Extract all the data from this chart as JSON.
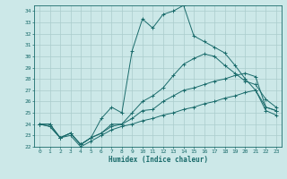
{
  "xlabel": "Humidex (Indice chaleur)",
  "background_color": "#cce8e8",
  "grid_color": "#aacccc",
  "line_color": "#1a6b6b",
  "xlim": [
    -0.5,
    23.5
  ],
  "ylim": [
    22,
    34.5
  ],
  "yticks": [
    22,
    23,
    24,
    25,
    26,
    27,
    28,
    29,
    30,
    31,
    32,
    33,
    34
  ],
  "xticks": [
    0,
    1,
    2,
    3,
    4,
    5,
    6,
    7,
    8,
    9,
    10,
    11,
    12,
    13,
    14,
    15,
    16,
    17,
    18,
    19,
    20,
    21,
    22,
    23
  ],
  "series": [
    [
      24.0,
      23.8,
      22.8,
      23.2,
      22.2,
      22.8,
      24.5,
      25.5,
      25.0,
      30.5,
      33.3,
      32.5,
      33.7,
      34.0,
      34.5,
      31.8,
      31.3,
      30.8,
      30.3,
      29.2,
      28.0,
      27.0,
      25.5,
      25.2
    ],
    [
      24.0,
      24.0,
      22.8,
      23.2,
      22.2,
      22.8,
      23.2,
      24.0,
      24.0,
      25.0,
      26.0,
      26.5,
      27.2,
      28.3,
      29.3,
      29.8,
      30.2,
      30.0,
      29.2,
      28.5,
      27.8,
      27.5,
      26.2,
      25.5
    ],
    [
      24.0,
      24.0,
      22.8,
      23.2,
      22.2,
      22.8,
      23.2,
      23.8,
      24.0,
      24.5,
      25.2,
      25.3,
      26.0,
      26.5,
      27.0,
      27.2,
      27.5,
      27.8,
      28.0,
      28.3,
      28.5,
      28.2,
      25.5,
      25.2
    ],
    [
      24.0,
      23.8,
      22.8,
      23.0,
      22.0,
      22.5,
      23.0,
      23.5,
      23.8,
      24.0,
      24.3,
      24.5,
      24.8,
      25.0,
      25.3,
      25.5,
      25.8,
      26.0,
      26.3,
      26.5,
      26.8,
      27.0,
      25.2,
      24.8
    ]
  ]
}
